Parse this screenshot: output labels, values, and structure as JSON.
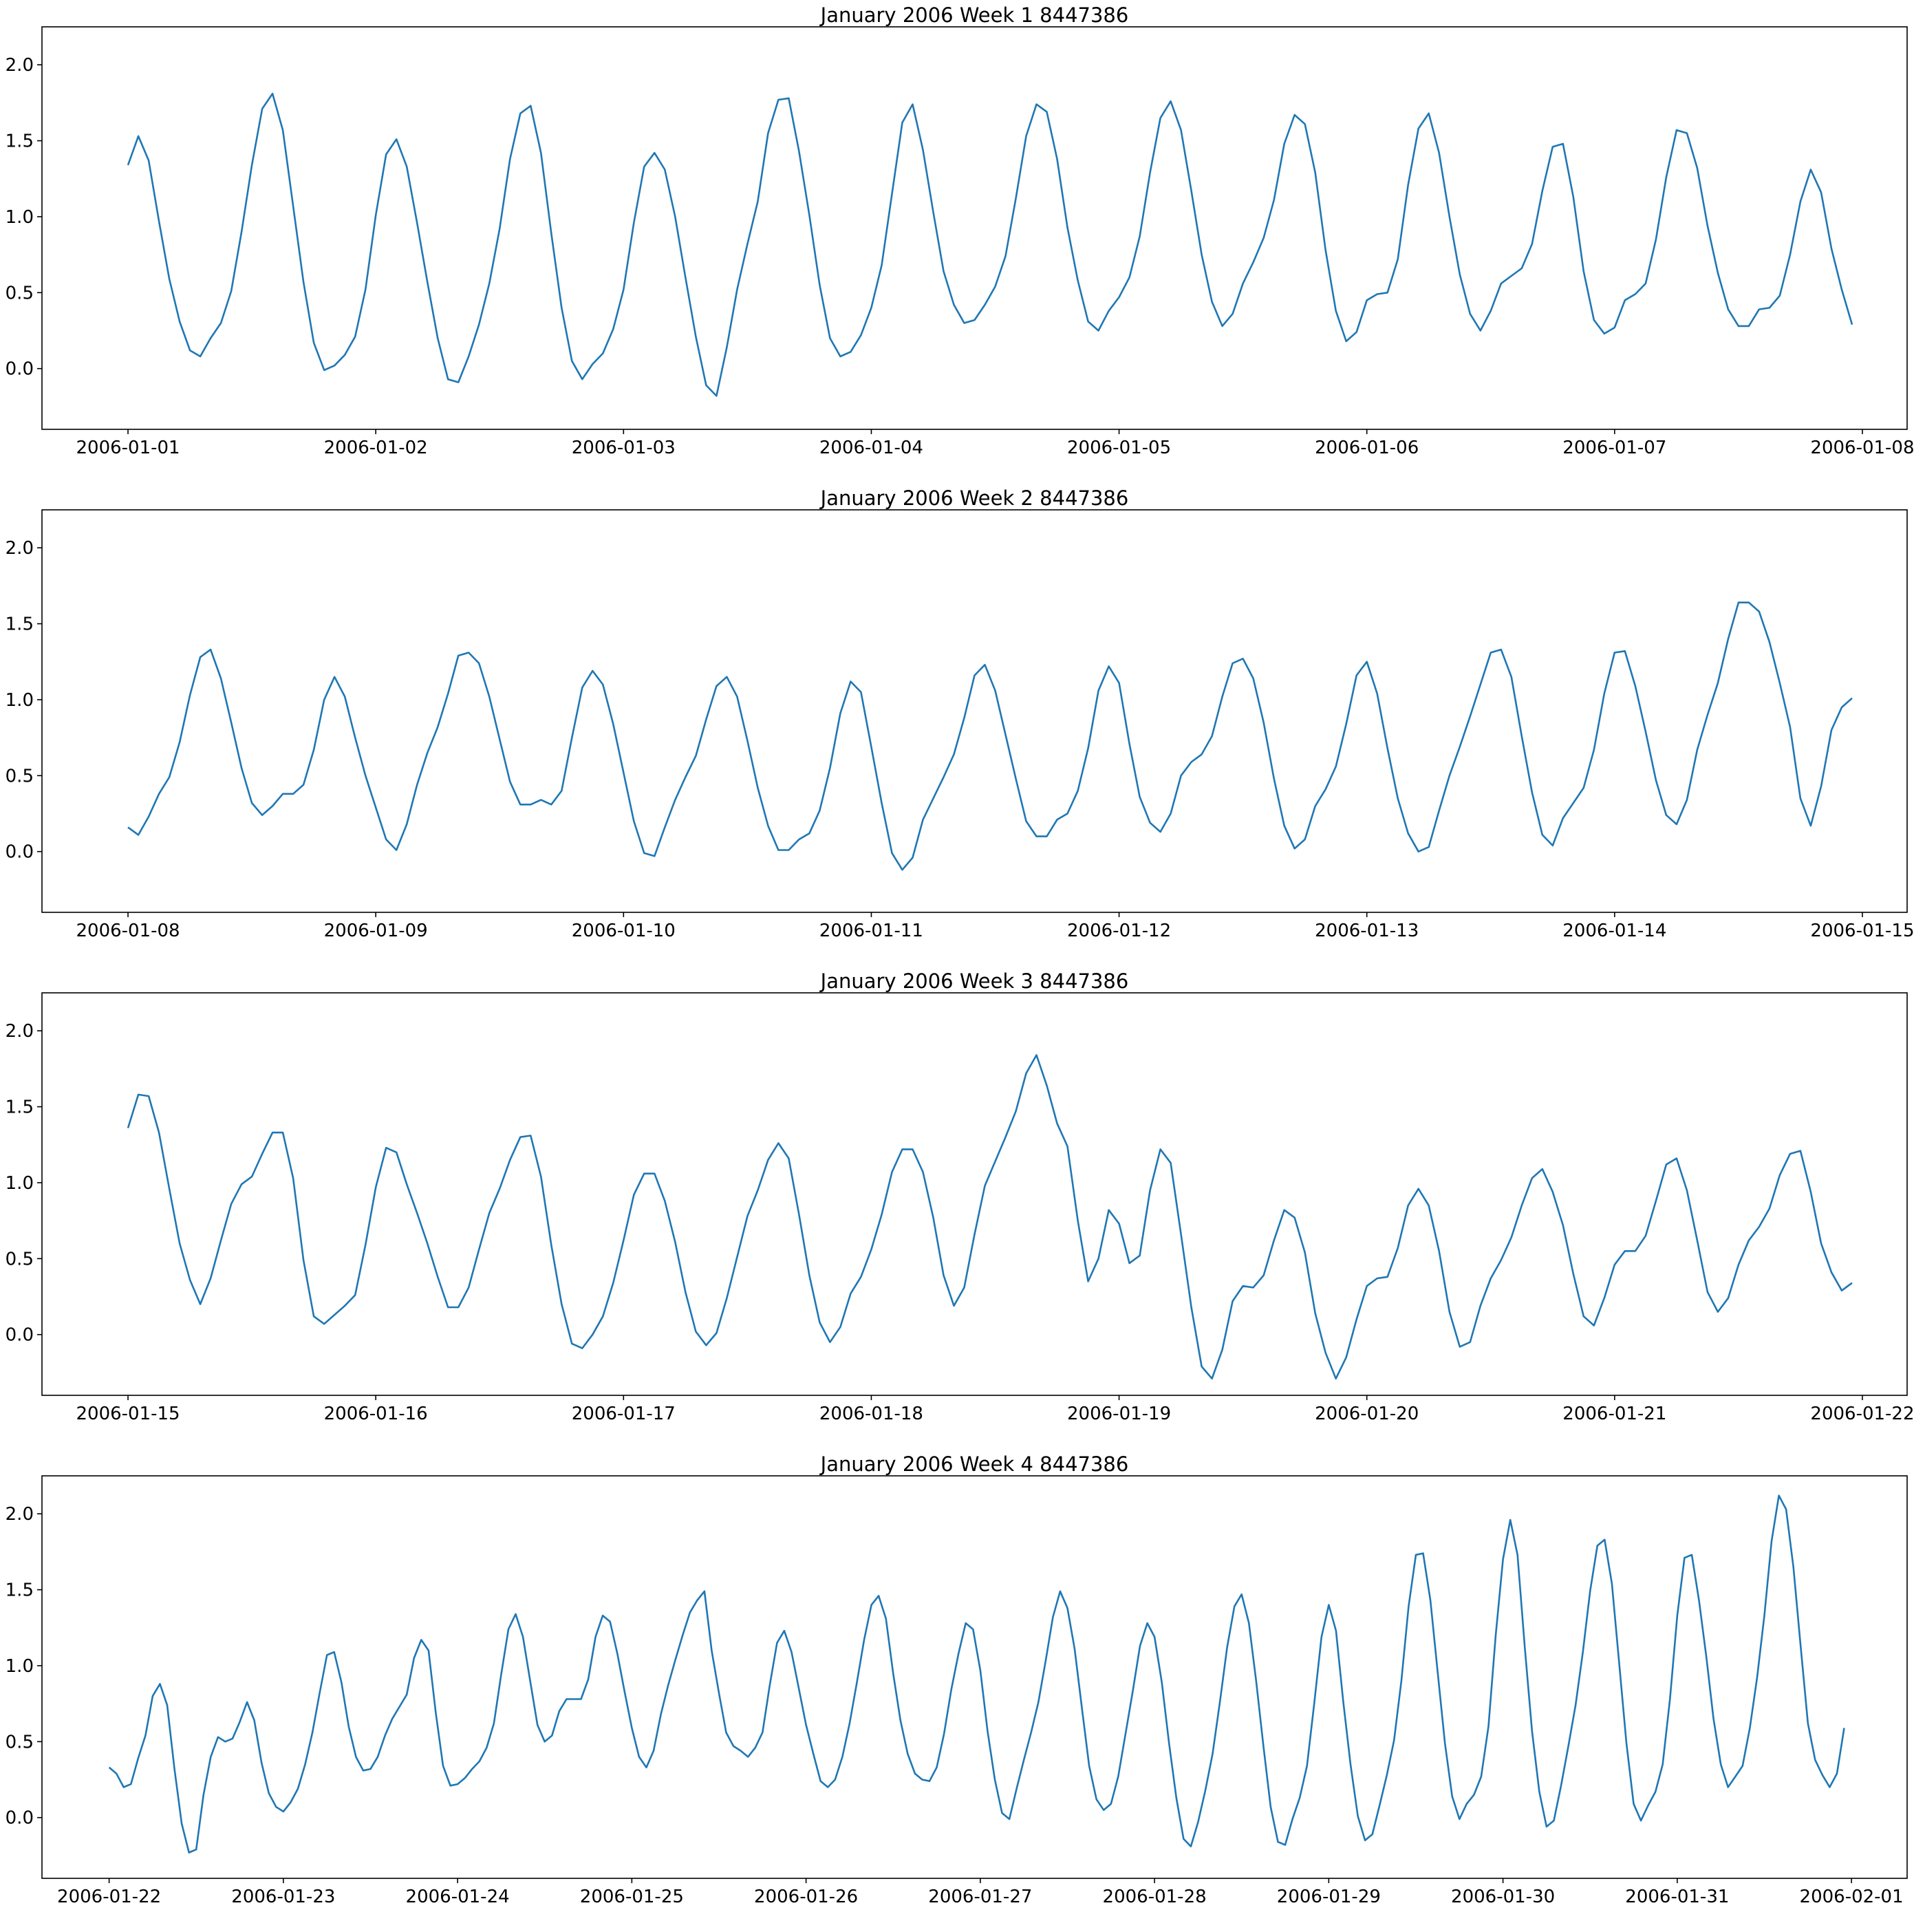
{
  "chart_data": [
    {
      "type": "line",
      "title": "January 2006 Week 1 8447386",
      "xlabel": "",
      "ylabel": "",
      "xlim": [
        "2005-12-31T15:40",
        "2006-01-08T04:20"
      ],
      "ylim": [
        -0.4,
        2.25
      ],
      "grid": false,
      "xticks": [
        "2006-01-01",
        "2006-01-02",
        "2006-01-03",
        "2006-01-04",
        "2006-01-05",
        "2006-01-06",
        "2006-01-07",
        "2006-01-08"
      ],
      "yticks": [
        "0.0",
        "0.5",
        "1.0",
        "1.5",
        "2.0"
      ],
      "x_start": "2006-01-01T00:00",
      "x_step_hours": 1,
      "values": [
        1.34,
        1.53,
        1.37,
        0.97,
        0.59,
        0.31,
        0.12,
        0.08,
        0.2,
        0.3,
        0.51,
        0.9,
        1.34,
        1.71,
        1.81,
        1.57,
        1.07,
        0.57,
        0.17,
        -0.01,
        0.02,
        0.09,
        0.21,
        0.52,
        1.01,
        1.41,
        1.51,
        1.33,
        0.96,
        0.57,
        0.2,
        -0.07,
        -0.09,
        0.08,
        0.29,
        0.56,
        0.92,
        1.38,
        1.68,
        1.73,
        1.42,
        0.89,
        0.4,
        0.05,
        -0.07,
        0.03,
        0.1,
        0.26,
        0.52,
        0.96,
        1.33,
        1.42,
        1.31,
        1.0,
        0.6,
        0.21,
        -0.11,
        -0.18,
        0.14,
        0.52,
        0.82,
        1.1,
        1.55,
        1.77,
        1.78,
        1.43,
        1.01,
        0.55,
        0.2,
        0.08,
        0.11,
        0.22,
        0.4,
        0.68,
        1.15,
        1.62,
        1.74,
        1.44,
        1.03,
        0.64,
        0.42,
        0.3,
        0.32,
        0.42,
        0.54,
        0.74,
        1.12,
        1.53,
        1.74,
        1.69,
        1.38,
        0.93,
        0.58,
        0.31,
        0.25,
        0.38,
        0.47,
        0.6,
        0.87,
        1.29,
        1.65,
        1.76,
        1.57,
        1.17,
        0.75,
        0.44,
        0.28,
        0.36,
        0.56,
        0.7,
        0.86,
        1.11,
        1.48,
        1.67,
        1.61,
        1.29,
        0.78,
        0.38,
        0.18,
        0.24,
        0.45,
        0.49,
        0.5,
        0.72,
        1.21,
        1.58,
        1.68,
        1.42,
        1.0,
        0.62,
        0.36,
        0.25,
        0.38,
        0.56,
        0.61,
        0.66,
        0.82,
        1.17,
        1.46,
        1.48,
        1.13,
        0.64,
        0.32,
        0.23,
        0.27,
        0.45,
        0.49,
        0.56,
        0.85,
        1.26,
        1.57,
        1.55,
        1.32,
        0.94,
        0.63,
        0.39,
        0.28,
        0.28,
        0.39,
        0.4,
        0.48,
        0.75,
        1.1,
        1.31,
        1.16,
        0.79,
        0.52,
        0.29
      ]
    },
    {
      "type": "line",
      "title": "January 2006 Week 2 8447386",
      "xlabel": "",
      "ylabel": "",
      "xlim": [
        "2006-01-07T15:40",
        "2006-01-15T04:20"
      ],
      "ylim": [
        -0.4,
        2.25
      ],
      "grid": false,
      "xticks": [
        "2006-01-08",
        "2006-01-09",
        "2006-01-10",
        "2006-01-11",
        "2006-01-12",
        "2006-01-13",
        "2006-01-14",
        "2006-01-15"
      ],
      "yticks": [
        "0.0",
        "0.5",
        "1.0",
        "1.5",
        "2.0"
      ],
      "x_start": "2006-01-08T00:00",
      "x_step_hours": 1,
      "values": [
        0.16,
        0.11,
        0.23,
        0.38,
        0.49,
        0.72,
        1.03,
        1.28,
        1.33,
        1.14,
        0.85,
        0.55,
        0.32,
        0.24,
        0.3,
        0.38,
        0.38,
        0.44,
        0.67,
        1.0,
        1.15,
        1.02,
        0.75,
        0.5,
        0.29,
        0.08,
        0.01,
        0.18,
        0.44,
        0.65,
        0.82,
        1.04,
        1.29,
        1.31,
        1.24,
        1.02,
        0.74,
        0.46,
        0.31,
        0.31,
        0.34,
        0.31,
        0.4,
        0.75,
        1.08,
        1.19,
        1.1,
        0.84,
        0.52,
        0.2,
        -0.01,
        -0.03,
        0.16,
        0.34,
        0.49,
        0.63,
        0.87,
        1.09,
        1.15,
        1.02,
        0.73,
        0.42,
        0.17,
        0.01,
        0.01,
        0.08,
        0.12,
        0.27,
        0.55,
        0.91,
        1.12,
        1.05,
        0.69,
        0.32,
        -0.01,
        -0.12,
        -0.04,
        0.21,
        0.35,
        0.49,
        0.64,
        0.88,
        1.16,
        1.23,
        1.06,
        0.77,
        0.48,
        0.2,
        0.1,
        0.1,
        0.21,
        0.25,
        0.4,
        0.68,
        1.06,
        1.22,
        1.11,
        0.71,
        0.36,
        0.19,
        0.13,
        0.25,
        0.5,
        0.59,
        0.64,
        0.76,
        1.02,
        1.24,
        1.27,
        1.14,
        0.85,
        0.48,
        0.17,
        0.02,
        0.08,
        0.3,
        0.41,
        0.56,
        0.84,
        1.16,
        1.25,
        1.04,
        0.68,
        0.35,
        0.12,
        0.0,
        0.03,
        0.27,
        0.5,
        0.69,
        0.89,
        1.1,
        1.31,
        1.33,
        1.15,
        0.76,
        0.39,
        0.11,
        0.04,
        0.22,
        0.32,
        0.42,
        0.67,
        1.04,
        1.31,
        1.32,
        1.09,
        0.79,
        0.47,
        0.24,
        0.18,
        0.34,
        0.67,
        0.9,
        1.11,
        1.4,
        1.64,
        1.64,
        1.58,
        1.38,
        1.11,
        0.82,
        0.35,
        0.17,
        0.43,
        0.8,
        0.95,
        1.01
      ]
    },
    {
      "type": "line",
      "title": "January 2006 Week 3 8447386",
      "xlabel": "",
      "ylabel": "",
      "xlim": [
        "2006-01-14T15:40",
        "2006-01-22T04:20"
      ],
      "ylim": [
        -0.4,
        2.25
      ],
      "grid": false,
      "xticks": [
        "2006-01-15",
        "2006-01-16",
        "2006-01-17",
        "2006-01-18",
        "2006-01-19",
        "2006-01-20",
        "2006-01-21",
        "2006-01-22"
      ],
      "yticks": [
        "0.0",
        "0.5",
        "1.0",
        "1.5",
        "2.0"
      ],
      "x_start": "2006-01-15T00:00",
      "x_step_hours": 1,
      "values": [
        1.36,
        1.58,
        1.57,
        1.33,
        0.96,
        0.6,
        0.36,
        0.2,
        0.37,
        0.62,
        0.86,
        0.99,
        1.04,
        1.19,
        1.33,
        1.33,
        1.03,
        0.49,
        0.12,
        0.07,
        0.13,
        0.19,
        0.26,
        0.59,
        0.97,
        1.23,
        1.2,
        0.99,
        0.8,
        0.6,
        0.38,
        0.18,
        0.18,
        0.31,
        0.56,
        0.8,
        0.96,
        1.15,
        1.3,
        1.31,
        1.04,
        0.59,
        0.2,
        -0.06,
        -0.09,
        0.0,
        0.12,
        0.34,
        0.62,
        0.92,
        1.06,
        1.06,
        0.88,
        0.61,
        0.28,
        0.02,
        -0.07,
        0.01,
        0.24,
        0.51,
        0.78,
        0.95,
        1.15,
        1.26,
        1.16,
        0.79,
        0.39,
        0.08,
        -0.05,
        0.05,
        0.27,
        0.38,
        0.56,
        0.79,
        1.07,
        1.22,
        1.22,
        1.07,
        0.77,
        0.39,
        0.19,
        0.31,
        0.66,
        0.98,
        1.14,
        1.3,
        1.47,
        1.72,
        1.84,
        1.64,
        1.39,
        1.24,
        0.75,
        0.35,
        0.5,
        0.82,
        0.73,
        0.47,
        0.52,
        0.95,
        1.22,
        1.13,
        0.66,
        0.18,
        -0.21,
        -0.29,
        -0.1,
        0.22,
        0.32,
        0.31,
        0.39,
        0.62,
        0.82,
        0.77,
        0.54,
        0.14,
        -0.12,
        -0.29,
        -0.15,
        0.1,
        0.32,
        0.37,
        0.38,
        0.57,
        0.85,
        0.96,
        0.85,
        0.55,
        0.15,
        -0.08,
        -0.05,
        0.19,
        0.37,
        0.49,
        0.64,
        0.85,
        1.03,
        1.09,
        0.94,
        0.72,
        0.4,
        0.12,
        0.06,
        0.24,
        0.46,
        0.55,
        0.55,
        0.65,
        0.88,
        1.12,
        1.16,
        0.95,
        0.62,
        0.28,
        0.15,
        0.24,
        0.46,
        0.62,
        0.71,
        0.83,
        1.05,
        1.19,
        1.21,
        0.94,
        0.6,
        0.41,
        0.29,
        0.34
      ]
    },
    {
      "type": "line",
      "title": "January 2006 Week 4 8447386",
      "xlabel": "",
      "ylabel": "",
      "xlim": [
        "2006-01-21T14:45",
        "2006-02-01T07:40"
      ],
      "ylim": [
        -0.4,
        2.25
      ],
      "grid": false,
      "xticks": [
        "2006-01-22",
        "2006-01-23",
        "2006-01-24",
        "2006-01-25",
        "2006-01-26",
        "2006-01-27",
        "2006-01-28",
        "2006-01-29",
        "2006-01-30",
        "2006-01-31",
        "2006-02-01"
      ],
      "yticks": [
        "0.0",
        "0.5",
        "1.0",
        "1.5",
        "2.0"
      ],
      "x_start": "2006-01-22T00:00",
      "x_step_hours": 1,
      "values": [
        0.33,
        0.29,
        0.2,
        0.22,
        0.39,
        0.54,
        0.8,
        0.88,
        0.74,
        0.32,
        -0.04,
        -0.23,
        -0.21,
        0.15,
        0.4,
        0.53,
        0.5,
        0.52,
        0.63,
        0.76,
        0.64,
        0.36,
        0.16,
        0.07,
        0.04,
        0.1,
        0.19,
        0.35,
        0.56,
        0.82,
        1.07,
        1.09,
        0.89,
        0.6,
        0.4,
        0.31,
        0.32,
        0.4,
        0.54,
        0.65,
        0.73,
        0.81,
        1.05,
        1.17,
        1.1,
        0.69,
        0.34,
        0.21,
        0.22,
        0.26,
        0.32,
        0.37,
        0.46,
        0.62,
        0.94,
        1.24,
        1.34,
        1.19,
        0.9,
        0.61,
        0.5,
        0.54,
        0.7,
        0.78,
        0.78,
        0.78,
        0.91,
        1.19,
        1.33,
        1.29,
        1.08,
        0.83,
        0.59,
        0.4,
        0.33,
        0.44,
        0.68,
        0.87,
        1.04,
        1.2,
        1.35,
        1.43,
        1.49,
        1.1,
        0.82,
        0.56,
        0.47,
        0.44,
        0.4,
        0.46,
        0.56,
        0.87,
        1.15,
        1.23,
        1.09,
        0.85,
        0.61,
        0.42,
        0.24,
        0.2,
        0.25,
        0.4,
        0.62,
        0.89,
        1.17,
        1.4,
        1.46,
        1.31,
        0.95,
        0.64,
        0.42,
        0.29,
        0.25,
        0.24,
        0.33,
        0.55,
        0.84,
        1.08,
        1.28,
        1.24,
        0.97,
        0.57,
        0.25,
        0.03,
        -0.01,
        0.19,
        0.38,
        0.56,
        0.76,
        1.03,
        1.32,
        1.49,
        1.38,
        1.11,
        0.72,
        0.34,
        0.12,
        0.05,
        0.09,
        0.27,
        0.55,
        0.83,
        1.13,
        1.28,
        1.19,
        0.89,
        0.49,
        0.13,
        -0.14,
        -0.19,
        -0.03,
        0.18,
        0.42,
        0.76,
        1.12,
        1.39,
        1.47,
        1.28,
        0.9,
        0.47,
        0.07,
        -0.16,
        -0.18,
        -0.01,
        0.13,
        0.34,
        0.75,
        1.19,
        1.4,
        1.23,
        0.76,
        0.35,
        0.01,
        -0.15,
        -0.11,
        0.08,
        0.28,
        0.51,
        0.9,
        1.39,
        1.73,
        1.74,
        1.43,
        0.96,
        0.49,
        0.14,
        -0.01,
        0.09,
        0.15,
        0.27,
        0.6,
        1.2,
        1.7,
        1.96,
        1.73,
        1.12,
        0.57,
        0.17,
        -0.06,
        -0.02,
        0.21,
        0.47,
        0.74,
        1.09,
        1.49,
        1.79,
        1.83,
        1.54,
        1.02,
        0.49,
        0.09,
        -0.02,
        0.08,
        0.17,
        0.35,
        0.78,
        1.33,
        1.71,
        1.73,
        1.43,
        1.06,
        0.65,
        0.35,
        0.2,
        0.27,
        0.34,
        0.59,
        0.92,
        1.33,
        1.82,
        2.12,
        2.03,
        1.65,
        1.13,
        0.62,
        0.38,
        0.28,
        0.2,
        0.29,
        0.59
      ]
    }
  ]
}
